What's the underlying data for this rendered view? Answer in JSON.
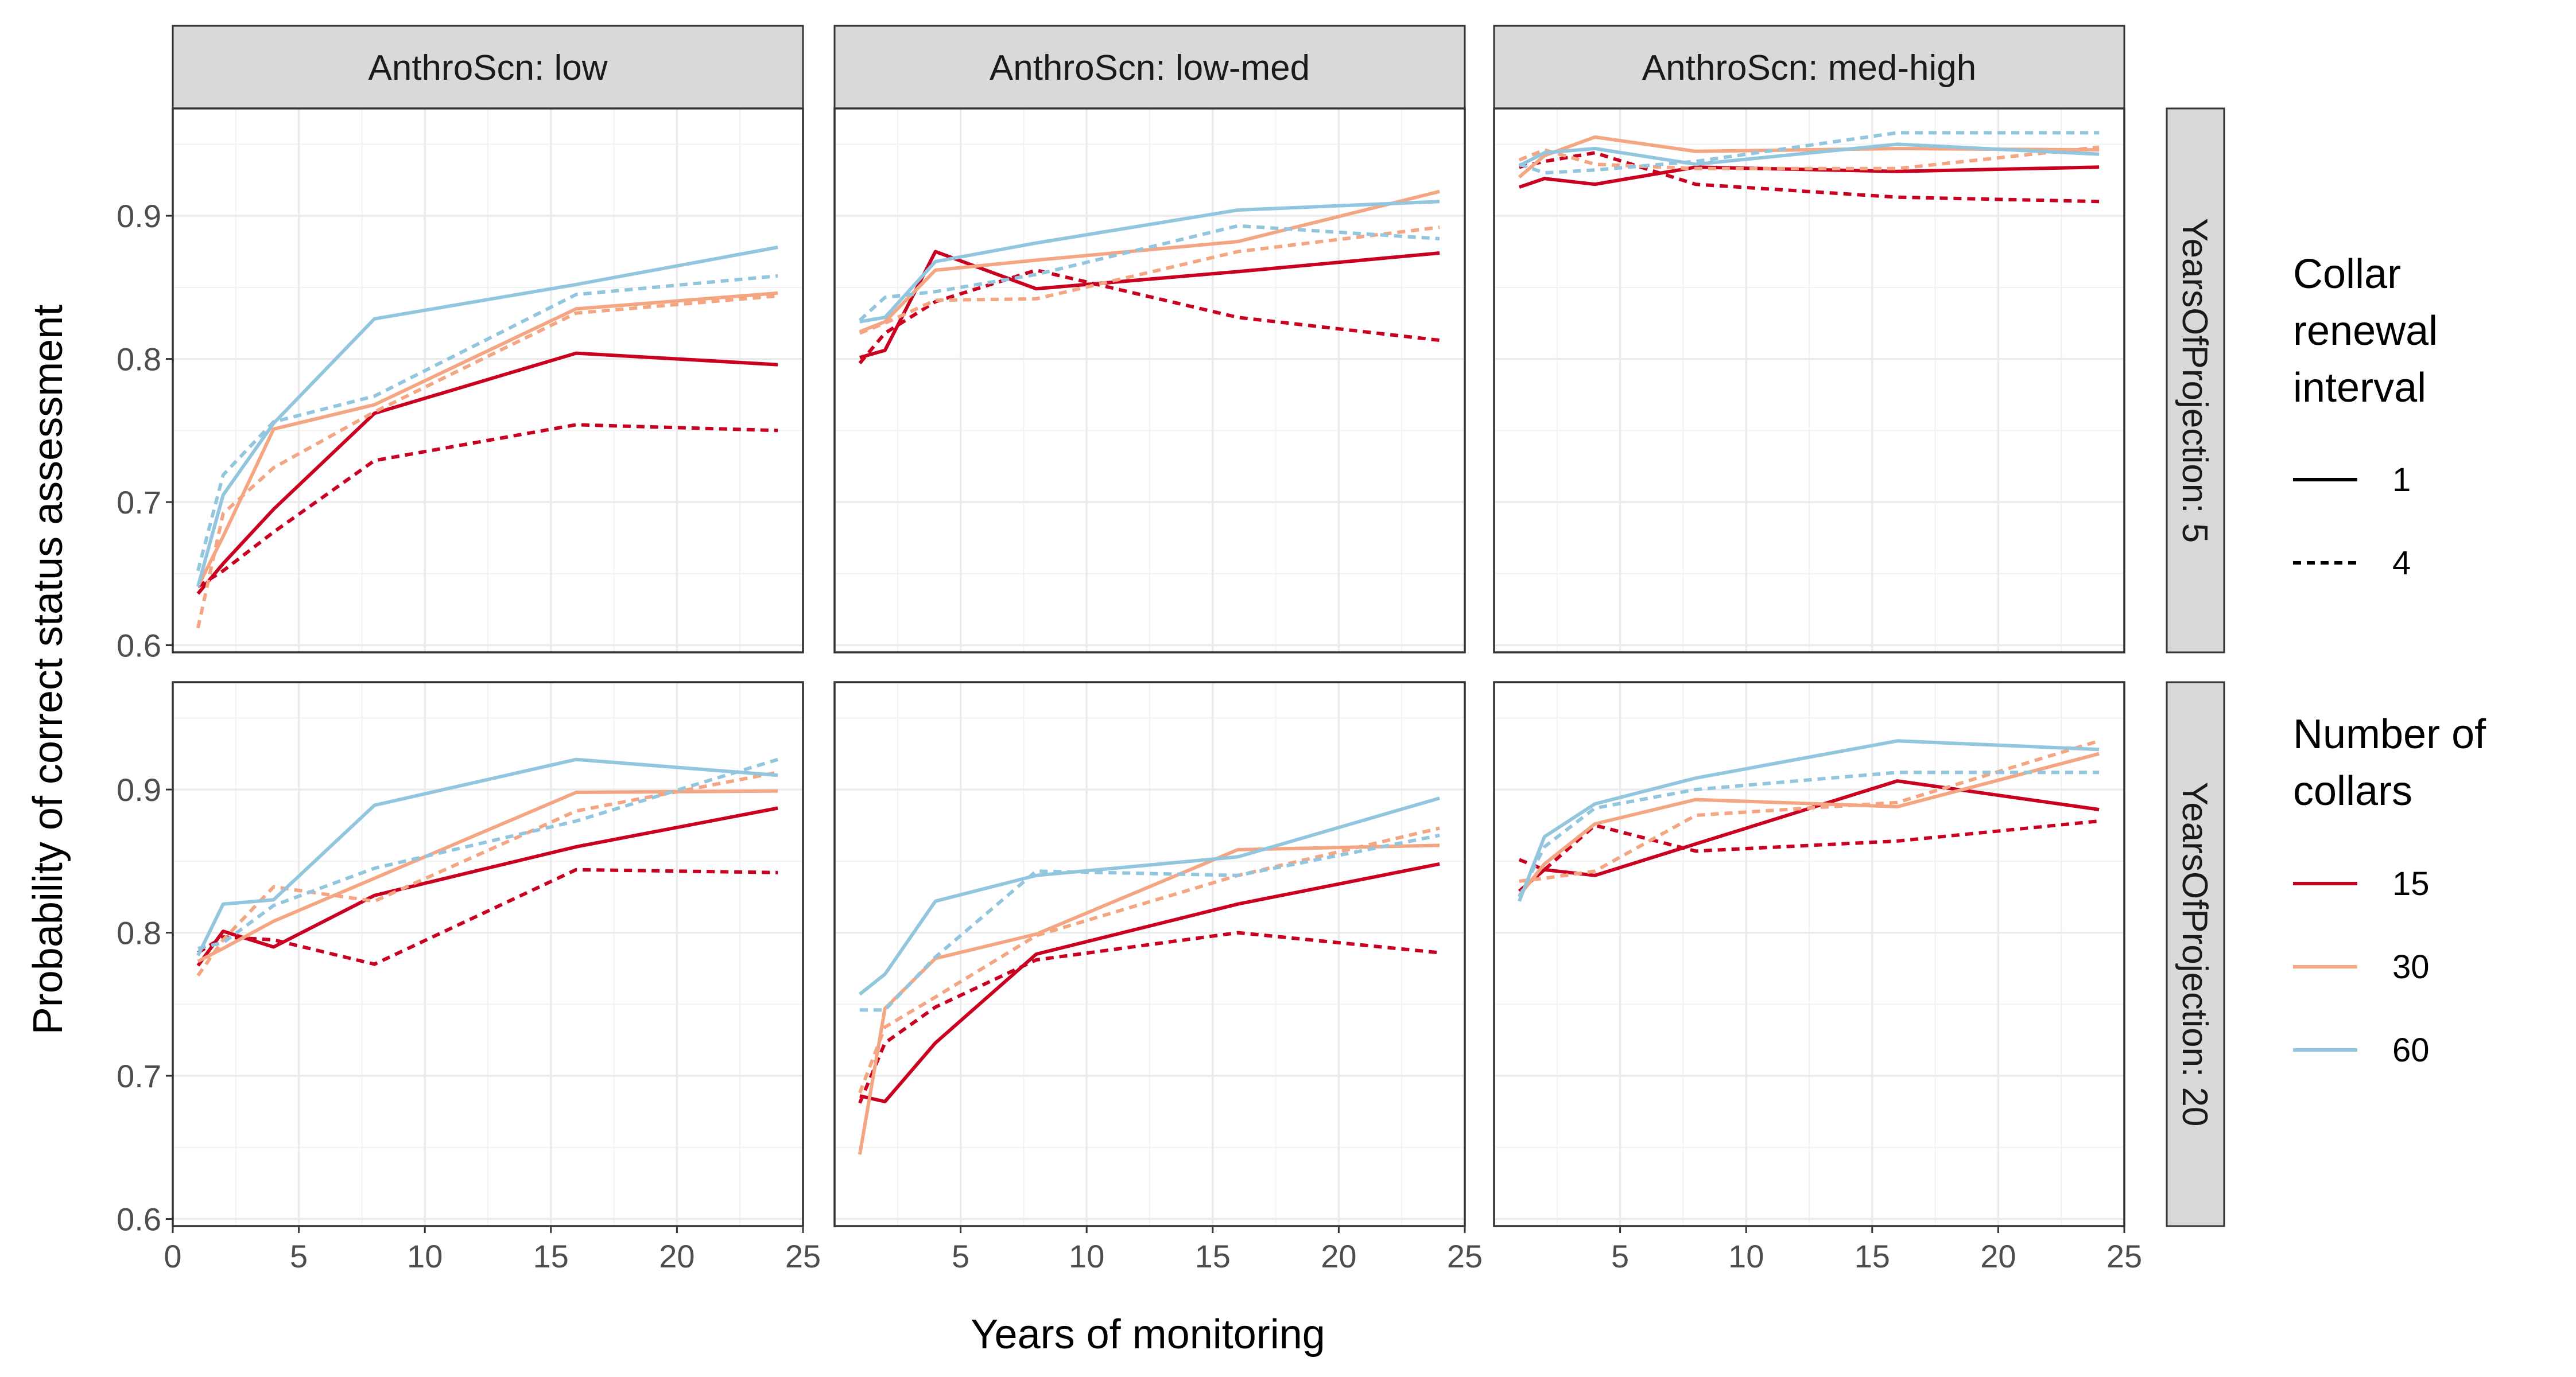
{
  "chart_data": {
    "type": "line",
    "xlabel": "Years of monitoring",
    "ylabel": "Probability of correct status assessment",
    "xlim": [
      0,
      25
    ],
    "ylim": [
      0.595,
      0.975
    ],
    "x_ticks": [
      0,
      5,
      10,
      15,
      20,
      25
    ],
    "y_ticks": [
      0.6,
      0.7,
      0.8,
      0.9
    ],
    "grid": true,
    "facet_cols": [
      "AnthroScn: low",
      "AnthroScn: low-med",
      "AnthroScn: med-high"
    ],
    "facet_rows": [
      "YearsOfProjection: 5",
      "YearsOfProjection: 20"
    ],
    "colors": {
      "15": "#ca0020",
      "30": "#f4a582",
      "60": "#92c5de"
    },
    "legend": {
      "position": "right",
      "linetype_title": [
        "Collar",
        "renewal",
        "interval"
      ],
      "linetype_entries": [
        "1",
        "4"
      ],
      "color_title": [
        "Number of",
        "collars"
      ],
      "color_entries": [
        "15",
        "30",
        "60"
      ]
    },
    "x": [
      1,
      2,
      4,
      8,
      16,
      24
    ],
    "panels": [
      {
        "row": 0,
        "col": 0,
        "series": [
          {
            "collars": "15",
            "interval": "1",
            "values": [
              0.636,
              0.657,
              0.695,
              0.762,
              0.804,
              0.796
            ]
          },
          {
            "collars": "15",
            "interval": "4",
            "values": [
              0.641,
              0.652,
              0.679,
              0.729,
              0.754,
              0.75
            ]
          },
          {
            "collars": "30",
            "interval": "1",
            "values": [
              0.641,
              0.676,
              0.751,
              0.768,
              0.835,
              0.846
            ]
          },
          {
            "collars": "30",
            "interval": "4",
            "values": [
              0.612,
              0.692,
              0.724,
              0.763,
              0.832,
              0.844
            ]
          },
          {
            "collars": "60",
            "interval": "1",
            "values": [
              0.641,
              0.705,
              0.755,
              0.828,
              0.852,
              0.878
            ]
          },
          {
            "collars": "60",
            "interval": "4",
            "values": [
              0.652,
              0.719,
              0.756,
              0.774,
              0.845,
              0.858
            ]
          }
        ]
      },
      {
        "row": 0,
        "col": 1,
        "series": [
          {
            "collars": "15",
            "interval": "1",
            "values": [
              0.801,
              0.806,
              0.875,
              0.849,
              0.861,
              0.874
            ]
          },
          {
            "collars": "15",
            "interval": "4",
            "values": [
              0.797,
              0.818,
              0.84,
              0.862,
              0.829,
              0.813
            ]
          },
          {
            "collars": "30",
            "interval": "1",
            "values": [
              0.819,
              0.826,
              0.862,
              0.869,
              0.882,
              0.917
            ]
          },
          {
            "collars": "30",
            "interval": "4",
            "values": [
              0.818,
              0.825,
              0.841,
              0.842,
              0.875,
              0.892
            ]
          },
          {
            "collars": "60",
            "interval": "1",
            "values": [
              0.826,
              0.829,
              0.868,
              0.881,
              0.904,
              0.91
            ]
          },
          {
            "collars": "60",
            "interval": "4",
            "values": [
              0.827,
              0.843,
              0.847,
              0.859,
              0.893,
              0.884
            ]
          }
        ]
      },
      {
        "row": 0,
        "col": 2,
        "series": [
          {
            "collars": "15",
            "interval": "1",
            "values": [
              0.92,
              0.926,
              0.922,
              0.934,
              0.931,
              0.934
            ]
          },
          {
            "collars": "15",
            "interval": "4",
            "values": [
              0.934,
              0.938,
              0.944,
              0.922,
              0.913,
              0.91
            ]
          },
          {
            "collars": "30",
            "interval": "1",
            "values": [
              0.927,
              0.942,
              0.955,
              0.945,
              0.947,
              0.946
            ]
          },
          {
            "collars": "30",
            "interval": "4",
            "values": [
              0.939,
              0.946,
              0.936,
              0.933,
              0.933,
              0.948
            ]
          },
          {
            "collars": "60",
            "interval": "1",
            "values": [
              0.935,
              0.944,
              0.947,
              0.936,
              0.95,
              0.943
            ]
          },
          {
            "collars": "60",
            "interval": "4",
            "values": [
              0.936,
              0.93,
              0.932,
              0.938,
              0.958,
              0.958
            ]
          }
        ]
      },
      {
        "row": 1,
        "col": 0,
        "series": [
          {
            "collars": "15",
            "interval": "1",
            "values": [
              0.777,
              0.801,
              0.79,
              0.826,
              0.86,
              0.887
            ]
          },
          {
            "collars": "15",
            "interval": "4",
            "values": [
              0.786,
              0.797,
              0.795,
              0.778,
              0.844,
              0.842
            ]
          },
          {
            "collars": "30",
            "interval": "1",
            "values": [
              0.78,
              0.789,
              0.808,
              0.838,
              0.898,
              0.899
            ]
          },
          {
            "collars": "30",
            "interval": "4",
            "values": [
              0.77,
              0.795,
              0.832,
              0.822,
              0.885,
              0.912
            ]
          },
          {
            "collars": "60",
            "interval": "1",
            "values": [
              0.784,
              0.82,
              0.823,
              0.889,
              0.921,
              0.91
            ]
          },
          {
            "collars": "60",
            "interval": "4",
            "values": [
              0.789,
              0.793,
              0.819,
              0.845,
              0.878,
              0.921
            ]
          }
        ]
      },
      {
        "row": 1,
        "col": 1,
        "series": [
          {
            "collars": "15",
            "interval": "1",
            "values": [
              0.686,
              0.682,
              0.723,
              0.785,
              0.82,
              0.848
            ]
          },
          {
            "collars": "15",
            "interval": "4",
            "values": [
              0.681,
              0.723,
              0.748,
              0.781,
              0.8,
              0.786
            ]
          },
          {
            "collars": "30",
            "interval": "1",
            "values": [
              0.645,
              0.747,
              0.782,
              0.799,
              0.858,
              0.861
            ]
          },
          {
            "collars": "30",
            "interval": "4",
            "values": [
              0.688,
              0.734,
              0.755,
              0.798,
              0.84,
              0.873
            ]
          },
          {
            "collars": "60",
            "interval": "1",
            "values": [
              0.757,
              0.771,
              0.822,
              0.84,
              0.853,
              0.894
            ]
          },
          {
            "collars": "60",
            "interval": "4",
            "values": [
              0.746,
              0.746,
              0.783,
              0.843,
              0.84,
              0.868
            ]
          }
        ]
      },
      {
        "row": 1,
        "col": 2,
        "series": [
          {
            "collars": "15",
            "interval": "1",
            "values": [
              0.829,
              0.844,
              0.84,
              0.862,
              0.906,
              0.886
            ]
          },
          {
            "collars": "15",
            "interval": "4",
            "values": [
              0.851,
              0.844,
              0.875,
              0.857,
              0.864,
              0.878
            ]
          },
          {
            "collars": "30",
            "interval": "1",
            "values": [
              0.826,
              0.848,
              0.876,
              0.893,
              0.888,
              0.925
            ]
          },
          {
            "collars": "30",
            "interval": "4",
            "values": [
              0.836,
              0.838,
              0.843,
              0.882,
              0.891,
              0.934
            ]
          },
          {
            "collars": "60",
            "interval": "1",
            "values": [
              0.822,
              0.867,
              0.89,
              0.908,
              0.934,
              0.928
            ]
          },
          {
            "collars": "60",
            "interval": "4",
            "values": [
              0.825,
              0.86,
              0.887,
              0.9,
              0.912,
              0.912
            ]
          }
        ]
      }
    ]
  }
}
